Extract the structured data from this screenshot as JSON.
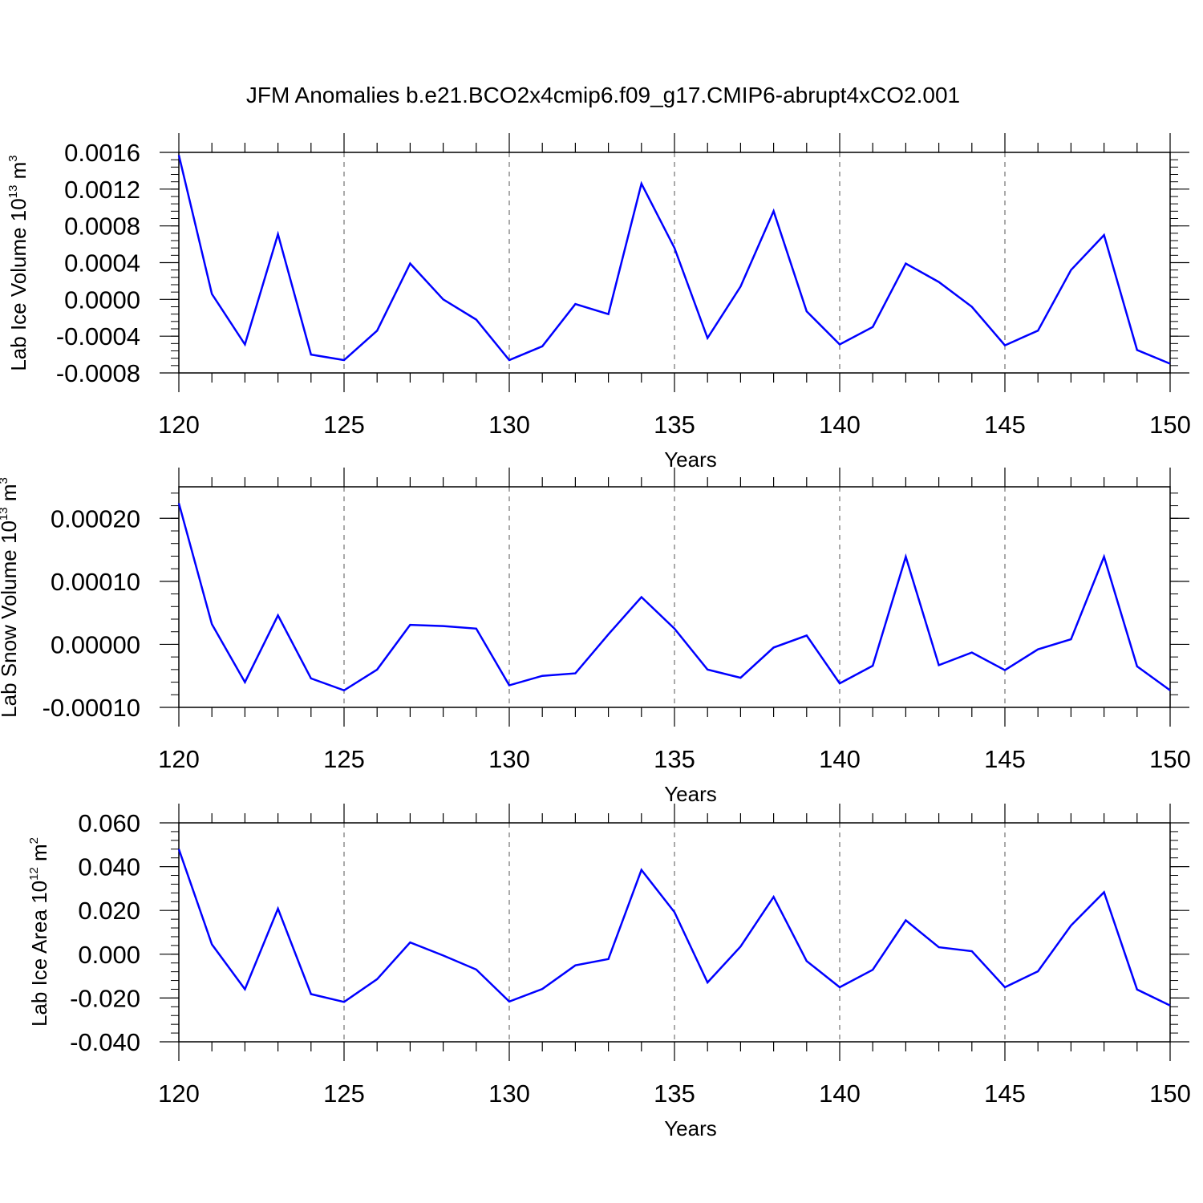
{
  "title": "JFM Anomalies b.e21.BCO2x4cmip6.f09_g17.CMIP6-abrupt4xCO2.001",
  "colors": {
    "line": "#0000ff",
    "axis": "#000000",
    "grid": "#555555",
    "background": "#ffffff"
  },
  "chart_data": [
    {
      "type": "line",
      "xlabel": "Years",
      "ylabel": {
        "prefix": "Lab Ice Volume 10",
        "exponent": "13",
        "unit": " m",
        "unit_exponent": "3"
      },
      "xlim": [
        120,
        150
      ],
      "ylim": [
        -0.0008,
        0.0016
      ],
      "x_ticks": [
        "120",
        "125",
        "130",
        "135",
        "140",
        "145",
        "150"
      ],
      "y_ticks": [
        {
          "value": 0.0016,
          "label": "0.0016"
        },
        {
          "value": 0.0012,
          "label": "0.0012"
        },
        {
          "value": 0.0008,
          "label": "0.0008"
        },
        {
          "value": 0.0004,
          "label": "0.0004"
        },
        {
          "value": 0.0,
          "label": "0.0000"
        },
        {
          "value": -0.0004,
          "label": "-0.0004"
        },
        {
          "value": -0.0008,
          "label": "-0.0008"
        }
      ],
      "grid": "vertical dashed at major x ticks",
      "x": [
        120,
        121,
        122,
        123,
        124,
        125,
        126,
        127,
        128,
        129,
        130,
        131,
        132,
        133,
        134,
        135,
        136,
        137,
        138,
        139,
        140,
        141,
        142,
        143,
        144,
        145,
        146,
        147,
        148,
        149,
        150
      ],
      "values": [
        0.00157,
        6e-05,
        -0.00049,
        0.00071,
        -0.0006,
        -0.00066,
        -0.00034,
        0.00039,
        0.0,
        -0.00022,
        -0.00066,
        -0.00051,
        -5e-05,
        -0.00016,
        0.00126,
        0.00056,
        -0.00042,
        0.00014,
        0.00096,
        -0.00013,
        -0.00049,
        -0.0003,
        0.00039,
        0.00019,
        -8e-05,
        -0.0005,
        -0.00034,
        0.00032,
        0.0007,
        -0.00055,
        -0.0007
      ]
    },
    {
      "type": "line",
      "xlabel": "Years",
      "ylabel": {
        "prefix": "Lab Snow Volume 10",
        "exponent": "13",
        "unit": " m",
        "unit_exponent": "3"
      },
      "xlim": [
        120,
        150
      ],
      "ylim": [
        -0.0001,
        0.00025
      ],
      "x_ticks": [
        "120",
        "125",
        "130",
        "135",
        "140",
        "145",
        "150"
      ],
      "y_ticks": [
        {
          "value": 0.0002,
          "label": "0.00020"
        },
        {
          "value": 0.0001,
          "label": "0.00010"
        },
        {
          "value": 0.0,
          "label": "0.00000"
        },
        {
          "value": -0.0001,
          "label": "-0.00010"
        }
      ],
      "grid": "vertical dashed at major x ticks",
      "x": [
        120,
        121,
        122,
        123,
        124,
        125,
        126,
        127,
        128,
        129,
        130,
        131,
        132,
        133,
        134,
        135,
        136,
        137,
        138,
        139,
        140,
        141,
        142,
        143,
        144,
        145,
        146,
        147,
        148,
        149,
        150
      ],
      "values": [
        0.000224,
        3.2e-05,
        -6e-05,
        4.6e-05,
        -5.4e-05,
        -7.3e-05,
        -4e-05,
        3.1e-05,
        2.9e-05,
        2.5e-05,
        -6.5e-05,
        -5e-05,
        -4.6e-05,
        1.6e-05,
        7.5e-05,
        2.5e-05,
        -4e-05,
        -5.3e-05,
        -5e-06,
        1.4e-05,
        -6.2e-05,
        -3.4e-05,
        0.000139,
        -3.3e-05,
        -1.3e-05,
        -4.1e-05,
        -8e-06,
        8e-06,
        0.000139,
        -3.5e-05,
        -7.3e-05
      ]
    },
    {
      "type": "line",
      "xlabel": "Years",
      "ylabel": {
        "prefix": "Lab Ice Area 10",
        "exponent": "12",
        "unit": " m",
        "unit_exponent": "2"
      },
      "xlim": [
        120,
        150
      ],
      "ylim": [
        -0.04,
        0.06
      ],
      "x_ticks": [
        "120",
        "125",
        "130",
        "135",
        "140",
        "145",
        "150"
      ],
      "y_ticks": [
        {
          "value": 0.06,
          "label": "0.060"
        },
        {
          "value": 0.04,
          "label": "0.040"
        },
        {
          "value": 0.02,
          "label": "0.020"
        },
        {
          "value": 0.0,
          "label": "0.000"
        },
        {
          "value": -0.02,
          "label": "-0.020"
        },
        {
          "value": -0.04,
          "label": "-0.040"
        }
      ],
      "grid": "vertical dashed at major x ticks",
      "x": [
        120,
        121,
        122,
        123,
        124,
        125,
        126,
        127,
        128,
        129,
        130,
        131,
        132,
        133,
        134,
        135,
        136,
        137,
        138,
        139,
        140,
        141,
        142,
        143,
        144,
        145,
        146,
        147,
        148,
        149,
        150
      ],
      "values": [
        0.048,
        0.0045,
        -0.016,
        0.0208,
        -0.0182,
        -0.0218,
        -0.0114,
        0.0054,
        -0.0006,
        -0.007,
        -0.0216,
        -0.0159,
        -0.0051,
        -0.0022,
        0.0385,
        0.0192,
        -0.0129,
        0.0035,
        0.0262,
        -0.0031,
        -0.0151,
        -0.0071,
        0.0155,
        0.0032,
        0.0014,
        -0.0151,
        -0.0078,
        0.0131,
        0.0283,
        -0.0161,
        -0.0234
      ]
    }
  ]
}
